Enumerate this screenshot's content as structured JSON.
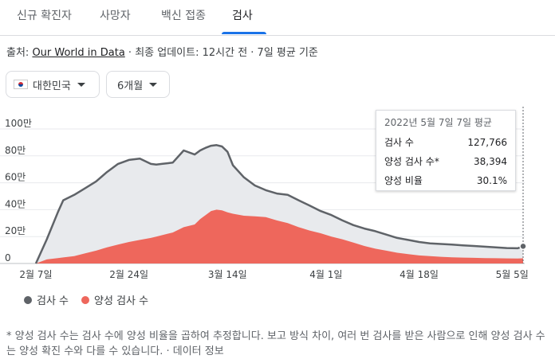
{
  "tabs": [
    {
      "label": "신규 확진자",
      "active": false
    },
    {
      "label": "사망자",
      "active": false
    },
    {
      "label": "백신 접종",
      "active": false
    },
    {
      "label": "검사",
      "active": true
    }
  ],
  "source": {
    "prefix": "출처: ",
    "link": "Our World in Data",
    "updated": " · 최종 업데이트: 12시간 전 · 7일 평균 기준"
  },
  "filters": {
    "country": "대한민국",
    "country_flag_icon": "korea-flag-icon",
    "period": "6개월"
  },
  "colors": {
    "tests_line": "#5f6368",
    "tests_fill": "#e8eaed",
    "positive": "#ee675c",
    "accent": "#1a73e8"
  },
  "tooltip": {
    "title": "2022년 5월 7일 7일 평균",
    "rows": [
      {
        "label": "검사 수",
        "value": "127,766"
      },
      {
        "label": "양성 검사 수*",
        "value": "38,394"
      },
      {
        "label": "양성 비율",
        "value": "30.1%"
      }
    ]
  },
  "legend": [
    {
      "label": "검사 수",
      "color": "#5f6368"
    },
    {
      "label": "양성 검사 수",
      "color": "#ee675c"
    }
  ],
  "footnote": {
    "text": "* 양성 검사 수는 검사 수에 양성 비율을 곱하여 추정합니다. 보고 방식 차이, 여러 번 검사를 받은 사람으로 인해 양성 검사 수는 양성 확진 수와 다를 수 있습니다. · ",
    "link": "데이터 정보"
  },
  "chart_data": {
    "type": "area",
    "title": "",
    "xlabel": "",
    "ylabel": "",
    "ylim": [
      0,
      1000000
    ],
    "y_ticks": [
      0,
      200000,
      400000,
      600000,
      800000,
      1000000
    ],
    "y_tick_labels": [
      "0",
      "20만",
      "40만",
      "60만",
      "80만",
      "100만"
    ],
    "x_tick_labels": [
      "2월 7일",
      "2월 24일",
      "3월 14일",
      "4월 1일",
      "4월 18일",
      "5월 5일"
    ],
    "x_tick_days": [
      0,
      17,
      35,
      53,
      70,
      87
    ],
    "x_range_days": [
      0,
      89
    ],
    "grid": true,
    "legend_position": "bottom-left",
    "series": [
      {
        "name": "검사 수",
        "x_days": [
          0,
          2,
          4,
          5,
          7,
          9,
          11,
          13,
          15,
          17,
          19,
          21,
          22,
          23,
          24,
          25,
          27,
          29,
          30,
          31,
          32,
          33,
          34,
          35,
          36,
          38,
          40,
          42,
          44,
          46,
          48,
          50,
          52,
          54,
          56,
          58,
          60,
          62,
          64,
          66,
          68,
          70,
          72,
          74,
          76,
          78,
          80,
          82,
          84,
          86,
          88,
          89
        ],
        "values": [
          0,
          180000,
          380000,
          470000,
          510000,
          560000,
          610000,
          680000,
          740000,
          770000,
          780000,
          740000,
          735000,
          740000,
          745000,
          750000,
          840000,
          810000,
          840000,
          860000,
          875000,
          880000,
          870000,
          830000,
          730000,
          640000,
          580000,
          545000,
          520000,
          510000,
          470000,
          430000,
          390000,
          360000,
          320000,
          285000,
          260000,
          240000,
          215000,
          190000,
          175000,
          160000,
          150000,
          145000,
          140000,
          135000,
          130000,
          125000,
          120000,
          115000,
          113000,
          128000
        ]
      },
      {
        "name": "양성 검사 수",
        "x_days": [
          0,
          2,
          4,
          5,
          7,
          9,
          11,
          13,
          15,
          17,
          19,
          21,
          22,
          23,
          24,
          25,
          27,
          29,
          30,
          31,
          32,
          33,
          34,
          35,
          36,
          38,
          40,
          42,
          44,
          46,
          48,
          50,
          52,
          54,
          56,
          58,
          60,
          62,
          64,
          66,
          68,
          70,
          72,
          74,
          76,
          78,
          80,
          82,
          84,
          86,
          88,
          89
        ],
        "values": [
          0,
          30000,
          40000,
          45000,
          55000,
          75000,
          95000,
          120000,
          140000,
          160000,
          175000,
          190000,
          200000,
          210000,
          220000,
          230000,
          270000,
          290000,
          330000,
          360000,
          390000,
          400000,
          395000,
          380000,
          370000,
          355000,
          350000,
          345000,
          320000,
          300000,
          270000,
          245000,
          225000,
          200000,
          180000,
          155000,
          130000,
          110000,
          95000,
          80000,
          70000,
          60000,
          55000,
          50000,
          46000,
          44000,
          42000,
          40000,
          39000,
          38000,
          37000,
          38394
        ]
      }
    ]
  }
}
